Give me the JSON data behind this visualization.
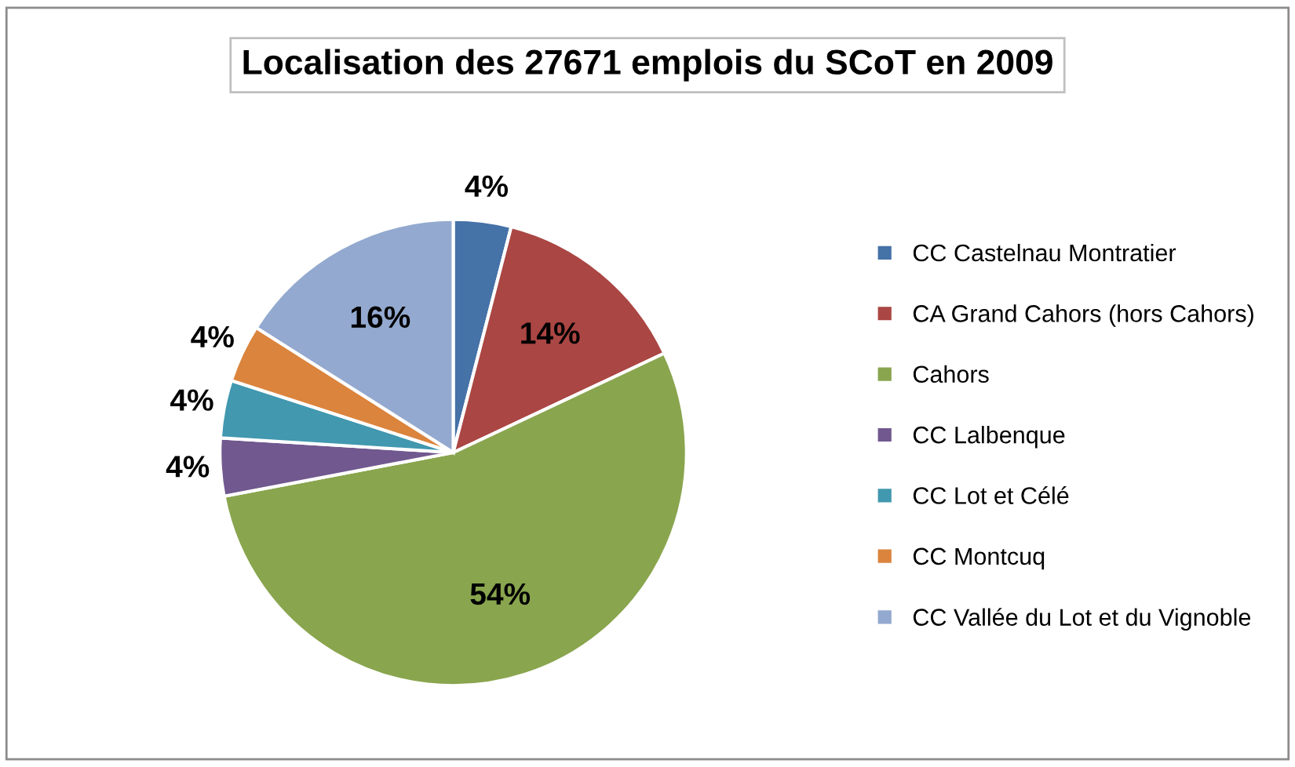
{
  "chart_data": {
    "type": "pie",
    "title": "Localisation des 27671 emplois du SCoT en 2009",
    "categories": [
      "CC Castelnau Montratier",
      "CA Grand Cahors (hors Cahors)",
      "Cahors",
      "CC Lalbenque",
      "CC Lot et Célé",
      "CC Montcuq",
      "CC Vallée du Lot et du Vignoble"
    ],
    "values": [
      4,
      14,
      54,
      4,
      4,
      4,
      16
    ],
    "value_labels": [
      "4%",
      "14%",
      "54%",
      "4%",
      "4%",
      "4%",
      "16%"
    ],
    "colors": [
      "#4572a7",
      "#aa4643",
      "#89a54e",
      "#71588f",
      "#4198af",
      "#db843d",
      "#93a9cf"
    ],
    "legend": "right"
  }
}
